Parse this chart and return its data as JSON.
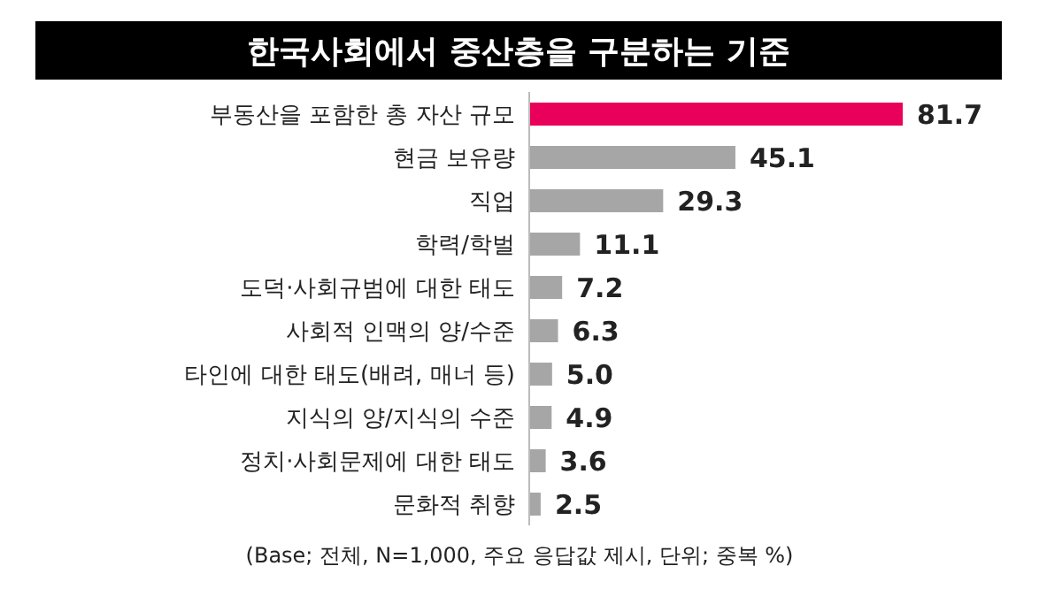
{
  "chart_data": {
    "type": "bar",
    "orientation": "horizontal",
    "title": "한국사회에서 중산층을 구분하는 기준",
    "categories": [
      "부동산을 포함한 총 자산 규모",
      "현금 보유량",
      "직업",
      "학력/학벌",
      "도덕·사회규범에 대한 태도",
      "사회적 인맥의 양/수준",
      "타인에 대한 태도(배려, 매너 등)",
      "지식의 양/지식의 수준",
      "정치·사회문제에 대한 태도",
      "문화적 취향"
    ],
    "values": [
      81.7,
      45.1,
      29.3,
      11.1,
      7.2,
      6.3,
      5.0,
      4.9,
      3.6,
      2.5
    ],
    "colors": [
      "#e8005a",
      "#a6a6a6",
      "#a6a6a6",
      "#a6a6a6",
      "#a6a6a6",
      "#a6a6a6",
      "#a6a6a6",
      "#a6a6a6",
      "#a6a6a6",
      "#a6a6a6"
    ],
    "value_labels": [
      "81.7",
      "45.1",
      "29.3",
      "11.1",
      "7.2",
      "6.3",
      "5.0",
      "4.9",
      "3.6",
      "2.5"
    ],
    "tick_labels": "y",
    "annotations": [
      "(Base; 전체, N=1,000, 주요 응답값 제시, 단위; 중복 %)"
    ]
  }
}
